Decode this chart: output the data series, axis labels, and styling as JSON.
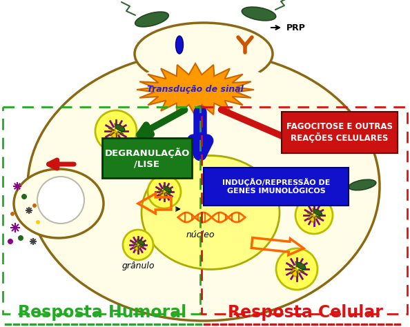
{
  "bg_color": "#ffffff",
  "cell_color": "#fffde7",
  "cell_border": "#8B6914",
  "nucleus_color": "#ffff88",
  "nucleus_border": "#aaaa00",
  "green_box_color": "#1a7a1a",
  "blue_box_color": "#1111cc",
  "red_box_color": "#cc1111",
  "orange_burst_color": "#ff9900",
  "dashed_green": "#22aa22",
  "dashed_red": "#dd1111",
  "title_left": "Resposta Humoral",
  "title_right": "Resposta Celular",
  "label_transdução": "Transdução de sinal",
  "label_degranulação": "DEGRANULAÇÃO\n/LISE",
  "label_indução": "INDUÇÃO/REPRESSÃO DE\nGENES IMUNOLÓGICOS",
  "label_fagocitose": "FAGOCITOSE E OUTRAS\nREAÇÕES CELULARES",
  "label_granulo": "grânulo",
  "label_nucleo": "núcleo",
  "label_prp": "PRP",
  "arrow_green": "#116611",
  "arrow_red": "#cc1111",
  "arrow_blue": "#1111cc",
  "arrow_orange": "#ee6600",
  "granule_fill": "#ffff55",
  "granule_border": "#bbbb00",
  "purple": "#880088",
  "dark_green": "#115511",
  "bacterium_color": "#336633",
  "bacterium_border": "#224422"
}
